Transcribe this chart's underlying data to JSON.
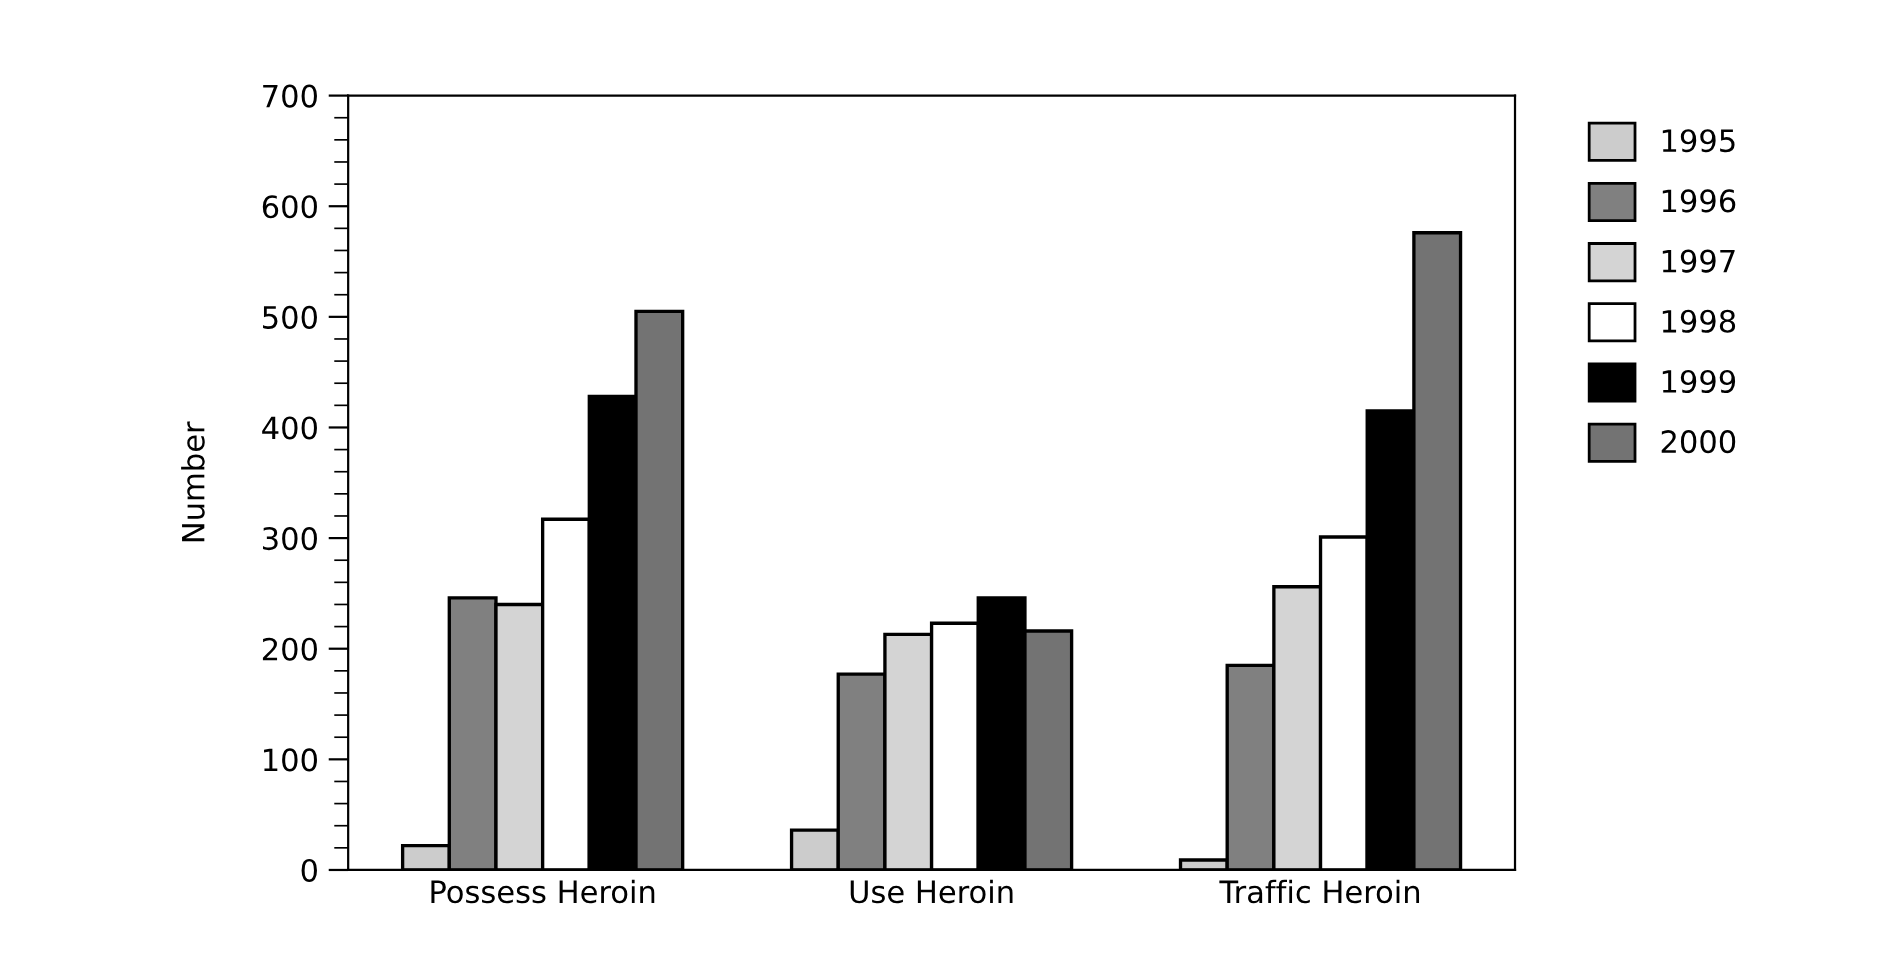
{
  "chart_data": {
    "type": "bar",
    "ylabel": "Number",
    "categories": [
      "Possess Heroin",
      "Use Heroin",
      "Traffic Heroin"
    ],
    "series": [
      {
        "name": "1995",
        "color": "#cccccc",
        "values": [
          22,
          36,
          9
        ]
      },
      {
        "name": "1996",
        "color": "#808080",
        "values": [
          246,
          177,
          185
        ]
      },
      {
        "name": "1997",
        "color": "#d4d4d4",
        "values": [
          240,
          213,
          256
        ]
      },
      {
        "name": "1998",
        "color": "#ffffff",
        "values": [
          317,
          223,
          301
        ]
      },
      {
        "name": "1999",
        "color": "#000000",
        "values": [
          428,
          246,
          415
        ]
      },
      {
        "name": "2000",
        "color": "#737373",
        "values": [
          505,
          216,
          576
        ]
      }
    ],
    "ylim": [
      0,
      700
    ],
    "yticks": [
      0,
      {
        "value": 20,
        "label": null
      },
      {
        "value": 40,
        "label": null
      },
      {
        "value": 60,
        "label": null
      },
      {
        "value": 80,
        "label": null
      },
      100,
      {
        "value": 120,
        "label": null
      },
      {
        "value": 140,
        "label": null
      },
      {
        "value": 160,
        "label": null
      },
      {
        "value": 180,
        "label": null
      },
      200,
      {
        "value": 220,
        "label": null
      },
      {
        "value": 240,
        "label": null
      },
      {
        "value": 260,
        "label": null
      },
      {
        "value": 280,
        "label": null
      },
      300,
      {
        "value": 320,
        "label": null
      },
      {
        "value": 340,
        "label": null
      },
      {
        "value": 360,
        "label": null
      },
      {
        "value": 380,
        "label": null
      },
      400,
      {
        "value": 420,
        "label": null
      },
      {
        "value": 440,
        "label": null
      },
      {
        "value": 460,
        "label": null
      },
      {
        "value": 480,
        "label": null
      },
      500,
      {
        "value": 520,
        "label": null
      },
      {
        "value": 540,
        "label": null
      },
      {
        "value": 560,
        "label": null
      },
      {
        "value": 580,
        "label": null
      },
      600,
      {
        "value": 620,
        "label": null
      },
      {
        "value": 640,
        "label": null
      },
      {
        "value": 660,
        "label": null
      },
      {
        "value": 680,
        "label": null
      },
      700
    ],
    "grid": false,
    "legend": "right"
  }
}
